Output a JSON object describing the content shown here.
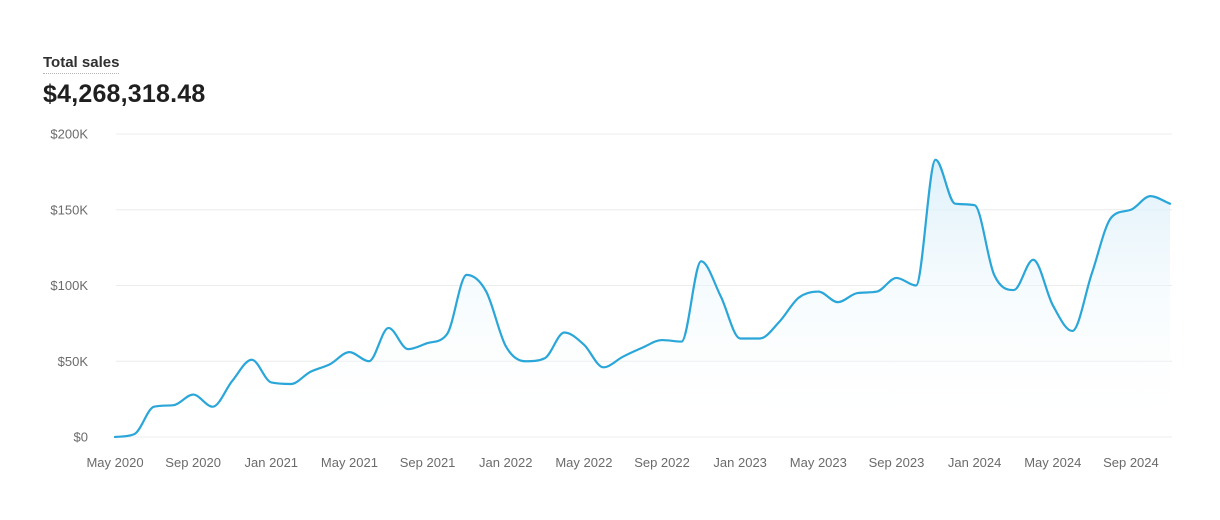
{
  "metric": {
    "title": "Total sales",
    "value": "$4,268,318.48"
  },
  "colors": {
    "line": "#2aa6d9",
    "fill": "#e3f3fb",
    "grid": "#ececec",
    "text": "#6b6b6b"
  },
  "chart_data": {
    "type": "area",
    "title": "Total sales",
    "xlabel": "",
    "ylabel": "",
    "ylim": [
      0,
      200000
    ],
    "y_ticks": [
      {
        "value": 0,
        "label": "$0"
      },
      {
        "value": 50000,
        "label": "$50K"
      },
      {
        "value": 100000,
        "label": "$100K"
      },
      {
        "value": 150000,
        "label": "$150K"
      },
      {
        "value": 200000,
        "label": "$200K"
      }
    ],
    "x_ticks": [
      "May 2020",
      "Sep 2020",
      "Jan 2021",
      "May 2021",
      "Sep 2021",
      "Jan 2022",
      "May 2022",
      "Sep 2022",
      "Jan 2023",
      "May 2023",
      "Sep 2023",
      "Jan 2024",
      "May 2024",
      "Sep 2024"
    ],
    "grid": true,
    "x": [
      "2020-05",
      "2020-06",
      "2020-07",
      "2020-08",
      "2020-09",
      "2020-10",
      "2020-11",
      "2020-12",
      "2021-01",
      "2021-02",
      "2021-03",
      "2021-04",
      "2021-05",
      "2021-06",
      "2021-07",
      "2021-08",
      "2021-09",
      "2021-10",
      "2021-11",
      "2021-12",
      "2022-01",
      "2022-02",
      "2022-03",
      "2022-04",
      "2022-05",
      "2022-06",
      "2022-07",
      "2022-08",
      "2022-09",
      "2022-10",
      "2022-11",
      "2022-12",
      "2023-01",
      "2023-02",
      "2023-03",
      "2023-04",
      "2023-05",
      "2023-06",
      "2023-07",
      "2023-08",
      "2023-09",
      "2023-10",
      "2023-11",
      "2023-12",
      "2024-01",
      "2024-02",
      "2024-03",
      "2024-04",
      "2024-05",
      "2024-06",
      "2024-07",
      "2024-08",
      "2024-09",
      "2024-10",
      "2024-11"
    ],
    "series": [
      {
        "values": [
          0,
          2000,
          20000,
          21000,
          28000,
          20000,
          37000,
          51000,
          36000,
          35000,
          43000,
          48000,
          56000,
          50000,
          72000,
          58000,
          62000,
          68000,
          107000,
          96000,
          60000,
          50000,
          52000,
          69000,
          61000,
          46000,
          53000,
          59000,
          64000,
          63000,
          116000,
          93000,
          65000,
          65000,
          76000,
          92000,
          96000,
          89000,
          95000,
          96000,
          105000,
          100000,
          183000,
          154000,
          153000,
          107000,
          97000,
          117000,
          87000,
          70000,
          108000,
          145000,
          150000,
          159000,
          154000
        ]
      }
    ]
  }
}
